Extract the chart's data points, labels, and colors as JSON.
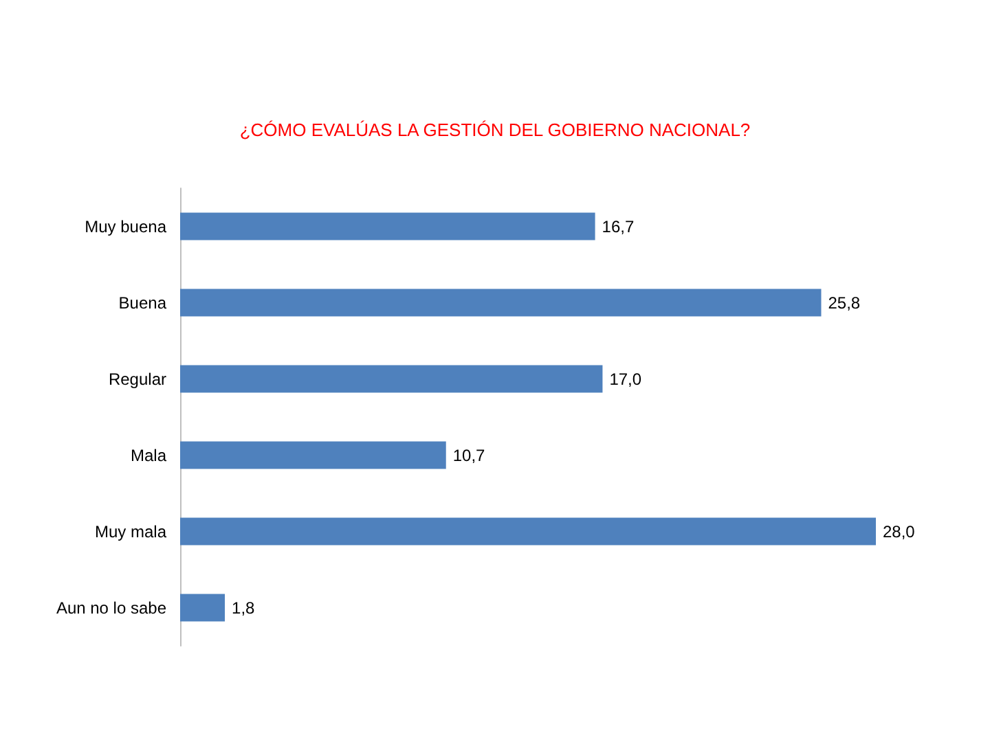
{
  "chart_data": {
    "type": "bar",
    "orientation": "horizontal",
    "title": "¿CÓMO EVALÚAS LA GESTIÓN DEL GOBIERNO NACIONAL?",
    "categories": [
      "Muy buena",
      "Buena",
      "Regular",
      "Mala",
      "Muy mala",
      "Aun no lo sabe"
    ],
    "values": [
      16.7,
      25.8,
      17.0,
      10.7,
      28.0,
      1.8
    ],
    "value_labels": [
      "16,7",
      "25,8",
      "17,0",
      "10,7",
      "28,0",
      "1,8"
    ],
    "color": "#4f81bd"
  }
}
